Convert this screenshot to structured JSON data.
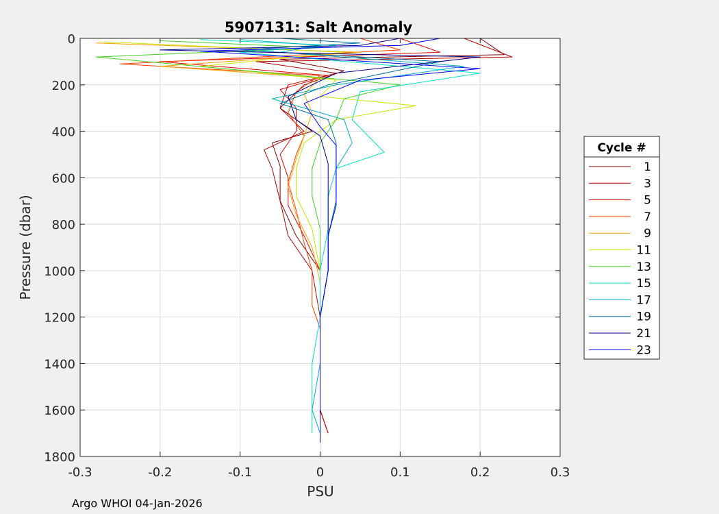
{
  "footer": "Argo WHOI 04-Jan-2026",
  "chart_data": {
    "type": "line",
    "title": "5907131: Salt Anomaly",
    "xlabel": "PSU",
    "ylabel": "Pressure (dbar)",
    "xlim": [
      -0.3,
      0.3
    ],
    "ylim": [
      0,
      1800
    ],
    "y_reversed": true,
    "grid": true,
    "xticks": [
      -0.3,
      -0.2,
      -0.1,
      0,
      0.1,
      0.2,
      0.3
    ],
    "xtick_labels": [
      "-0.3",
      "-0.2",
      "-0.1",
      "0",
      "0.1",
      "0.2",
      "0.3"
    ],
    "yticks": [
      0,
      200,
      400,
      600,
      800,
      1000,
      1200,
      1400,
      1600,
      1800
    ],
    "ytick_labels": [
      "0",
      "200",
      "400",
      "600",
      "800",
      "1000",
      "1200",
      "1400",
      "1600",
      "1800"
    ],
    "legend_title": "Cycle #",
    "legend_position": "outside-right",
    "series": [
      {
        "name": "1",
        "color": "#800000",
        "points": [
          [
            0.2,
            0
          ],
          [
            0.23,
            70
          ],
          [
            -0.05,
            90
          ],
          [
            0.03,
            140
          ],
          [
            -0.02,
            200
          ],
          [
            -0.05,
            300
          ],
          [
            -0.01,
            400
          ],
          [
            -0.06,
            450
          ],
          [
            -0.05,
            550
          ],
          [
            -0.05,
            700
          ],
          [
            -0.03,
            850
          ],
          [
            0.0,
            1000
          ],
          [
            0.0,
            1200
          ],
          [
            0.0,
            1400
          ],
          [
            0.0,
            1600
          ],
          [
            0.01,
            1700
          ]
        ]
      },
      {
        "name": "3",
        "color": "#b30000",
        "points": [
          [
            0.18,
            0
          ],
          [
            0.24,
            80
          ],
          [
            -0.08,
            100
          ],
          [
            0.02,
            150
          ],
          [
            -0.04,
            200
          ],
          [
            -0.05,
            300
          ],
          [
            -0.02,
            400
          ],
          [
            -0.07,
            480
          ],
          [
            -0.06,
            560
          ],
          [
            -0.05,
            700
          ],
          [
            -0.04,
            850
          ],
          [
            -0.01,
            1000
          ],
          [
            0.0,
            1200
          ],
          [
            0.0,
            1400
          ],
          [
            0.0,
            1600
          ],
          [
            0.01,
            1700
          ]
        ]
      },
      {
        "name": "5",
        "color": "#e60000",
        "points": [
          [
            0.1,
            0
          ],
          [
            0.15,
            60
          ],
          [
            -0.2,
            100
          ],
          [
            0.01,
            160
          ],
          [
            -0.05,
            220
          ],
          [
            -0.03,
            300
          ],
          [
            -0.03,
            400
          ],
          [
            -0.05,
            500
          ],
          [
            -0.04,
            600
          ],
          [
            -0.04,
            720
          ],
          [
            -0.02,
            850
          ],
          [
            0.0,
            1000
          ],
          [
            0.0,
            1200
          ],
          [
            0.0,
            1400
          ],
          [
            0.0,
            1600
          ],
          [
            0.01,
            1700
          ]
        ]
      },
      {
        "name": "7",
        "color": "#ff4000",
        "points": [
          [
            0.05,
            0
          ],
          [
            0.1,
            50
          ],
          [
            -0.25,
            110
          ],
          [
            0.0,
            160
          ],
          [
            -0.03,
            230
          ],
          [
            -0.04,
            320
          ],
          [
            -0.02,
            420
          ],
          [
            -0.03,
            500
          ],
          [
            -0.04,
            620
          ],
          [
            -0.03,
            740
          ],
          [
            -0.02,
            880
          ],
          [
            -0.01,
            1000
          ],
          [
            -0.01,
            1150
          ],
          [
            0.0,
            1250
          ],
          [
            0.0,
            1500
          ],
          [
            0.0,
            1700
          ]
        ]
      },
      {
        "name": "9",
        "color": "#ffa000",
        "points": [
          [
            -0.28,
            20
          ],
          [
            0.05,
            60
          ],
          [
            -0.2,
            120
          ],
          [
            0.0,
            170
          ],
          [
            -0.02,
            240
          ],
          [
            -0.01,
            320
          ],
          [
            -0.02,
            420
          ],
          [
            -0.03,
            520
          ],
          [
            -0.04,
            640
          ],
          [
            -0.03,
            760
          ],
          [
            -0.01,
            900
          ],
          [
            0.0,
            1050
          ],
          [
            0.0,
            1200
          ],
          [
            0.0,
            1400
          ],
          [
            0.0,
            1600
          ],
          [
            0.0,
            1700
          ]
        ]
      },
      {
        "name": "11",
        "color": "#c8e600",
        "points": [
          [
            -0.27,
            15
          ],
          [
            0.03,
            60
          ],
          [
            -0.15,
            120
          ],
          [
            0.02,
            180
          ],
          [
            0.0,
            250
          ],
          [
            0.12,
            290
          ],
          [
            0.02,
            350
          ],
          [
            -0.02,
            450
          ],
          [
            -0.03,
            560
          ],
          [
            -0.03,
            680
          ],
          [
            -0.01,
            820
          ],
          [
            0.0,
            1000
          ],
          [
            0.0,
            1200
          ],
          [
            0.0,
            1400
          ],
          [
            0.0,
            1600
          ],
          [
            0.0,
            1700
          ]
        ]
      },
      {
        "name": "13",
        "color": "#40d020",
        "points": [
          [
            -0.2,
            10
          ],
          [
            0.0,
            40
          ],
          [
            -0.28,
            80
          ],
          [
            0.1,
            200
          ],
          [
            0.03,
            260
          ],
          [
            0.02,
            350
          ],
          [
            0.0,
            450
          ],
          [
            -0.01,
            560
          ],
          [
            -0.01,
            680
          ],
          [
            0.0,
            820
          ],
          [
            0.0,
            1000
          ],
          [
            0.0,
            1200
          ],
          [
            0.0,
            1400
          ],
          [
            0.0,
            1600
          ],
          [
            0.0,
            1700
          ]
        ]
      },
      {
        "name": "15",
        "color": "#00e0c0",
        "points": [
          [
            -0.15,
            5
          ],
          [
            0.02,
            30
          ],
          [
            -0.1,
            60
          ],
          [
            0.2,
            150
          ],
          [
            0.05,
            230
          ],
          [
            0.04,
            350
          ],
          [
            0.08,
            490
          ],
          [
            0.02,
            560
          ],
          [
            0.01,
            680
          ],
          [
            0.01,
            820
          ],
          [
            0.0,
            1000
          ],
          [
            0.0,
            1200
          ],
          [
            -0.01,
            1400
          ],
          [
            -0.01,
            1600
          ],
          [
            -0.01,
            1700
          ]
        ]
      },
      {
        "name": "17",
        "color": "#00b0c0",
        "points": [
          [
            -0.1,
            5
          ],
          [
            0.0,
            30
          ],
          [
            -0.05,
            60
          ],
          [
            0.18,
            120
          ],
          [
            0.02,
            200
          ],
          [
            -0.06,
            260
          ],
          [
            0.03,
            350
          ],
          [
            0.04,
            450
          ],
          [
            0.02,
            560
          ],
          [
            0.02,
            700
          ],
          [
            0.01,
            850
          ],
          [
            0.01,
            1000
          ],
          [
            0.0,
            1200
          ],
          [
            0.0,
            1400
          ],
          [
            -0.01,
            1600
          ],
          [
            0.0,
            1700
          ]
        ]
      },
      {
        "name": "19",
        "color": "#0070a0",
        "points": [
          [
            -0.05,
            0
          ],
          [
            0.05,
            20
          ],
          [
            -0.1,
            50
          ],
          [
            0.15,
            100
          ],
          [
            0.01,
            200
          ],
          [
            -0.05,
            280
          ],
          [
            0.01,
            350
          ],
          [
            0.02,
            450
          ],
          [
            0.02,
            560
          ],
          [
            0.02,
            700
          ],
          [
            0.01,
            850
          ],
          [
            0.01,
            1000
          ],
          [
            0.0,
            1200
          ],
          [
            0.0,
            1400
          ],
          [
            0.0,
            1600
          ],
          [
            0.0,
            1700
          ]
        ]
      },
      {
        "name": "21",
        "color": "#00008c",
        "points": [
          [
            0.1,
            0
          ],
          [
            0.05,
            30
          ],
          [
            -0.2,
            50
          ],
          [
            0.2,
            80
          ],
          [
            0.02,
            150
          ],
          [
            -0.04,
            250
          ],
          [
            -0.03,
            350
          ],
          [
            0.0,
            420
          ],
          [
            0.01,
            540
          ],
          [
            0.01,
            650
          ],
          [
            0.01,
            780
          ],
          [
            0.01,
            900
          ],
          [
            0.01,
            1000
          ],
          [
            0.0,
            1200
          ],
          [
            0.0,
            1400
          ],
          [
            0.0,
            1600
          ],
          [
            0.0,
            1740
          ]
        ]
      },
      {
        "name": "23",
        "color": "#0000ff",
        "points": [
          [
            0.15,
            0
          ],
          [
            0.1,
            30
          ],
          [
            -0.15,
            55
          ],
          [
            0.2,
            130
          ],
          [
            0.05,
            180
          ],
          [
            -0.02,
            280
          ],
          [
            0.0,
            380
          ],
          [
            0.02,
            460
          ],
          [
            0.02,
            600
          ],
          [
            0.02,
            720
          ],
          [
            0.01,
            850
          ],
          [
            0.01,
            1000
          ],
          [
            0.0,
            1200
          ],
          [
            0.0,
            1400
          ],
          [
            0.0,
            1600
          ],
          [
            0.0,
            1700
          ]
        ]
      }
    ]
  }
}
